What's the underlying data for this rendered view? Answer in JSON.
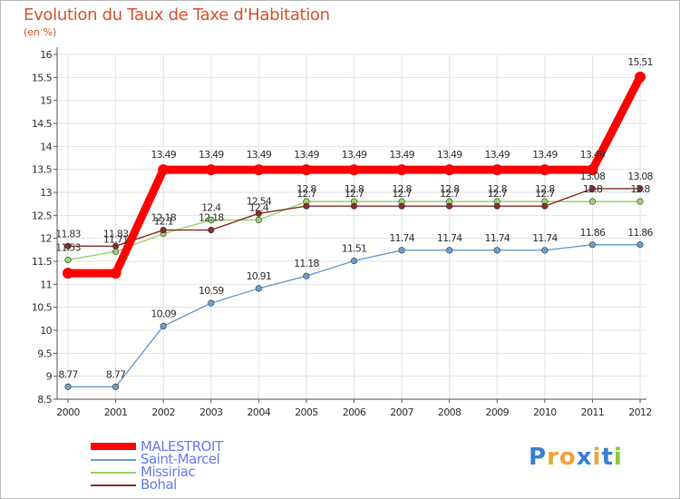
{
  "title": "Evolution du Taux de Taxe d'Habitation",
  "subtitle": "(en %)",
  "logo": {
    "letters": [
      "P",
      "r",
      "o",
      "x",
      "i",
      "t",
      "i"
    ],
    "colors": [
      "#3a7fd5",
      "#f0a23b",
      "#f0a23b",
      "#3a7fd5",
      "#f0a23b",
      "#3a7fd5",
      "#8cc63e"
    ]
  },
  "chart_data": {
    "type": "line",
    "x": [
      "2000",
      "2001",
      "2002",
      "2003",
      "2004",
      "2005",
      "2006",
      "2007",
      "2008",
      "2009",
      "2010",
      "2011",
      "2012"
    ],
    "ylim": [
      8.5,
      16
    ],
    "yticks": [
      "8.5",
      "9",
      "9.5",
      "10",
      "10.5",
      "11",
      "11.5",
      "12",
      "12.5",
      "13",
      "13.5",
      "14",
      "14.5",
      "15",
      "15.5",
      "16"
    ],
    "grid": true,
    "legend_position": "bottom-left",
    "series": [
      {
        "name": "MALESTROIT",
        "color": "#ff0000",
        "values": [
          11.24,
          11.24,
          13.49,
          13.49,
          13.49,
          13.49,
          13.49,
          13.49,
          13.49,
          13.49,
          13.49,
          13.49,
          15.51
        ],
        "labels": [
          "",
          "",
          "13.49",
          "13.49",
          "13.49",
          "13.49",
          "13.49",
          "13.49",
          "13.49",
          "13.49",
          "13.49",
          "13.49",
          "15.51"
        ]
      },
      {
        "name": "Saint-Marcel",
        "color": "#6a9fcc",
        "values": [
          8.77,
          8.77,
          10.09,
          10.59,
          10.91,
          11.18,
          11.51,
          11.74,
          11.74,
          11.74,
          11.74,
          11.86,
          11.86
        ],
        "labels": [
          "8.77",
          "8.77",
          "10.09",
          "10.59",
          "10.91",
          "11.18",
          "11.51",
          "11.74",
          "11.74",
          "11.74",
          "11.74",
          "11.86",
          "11.86"
        ]
      },
      {
        "name": "Missiriac",
        "color": "#99d36b",
        "values": [
          11.53,
          11.71,
          12.1,
          12.4,
          12.4,
          12.8,
          12.8,
          12.8,
          12.8,
          12.8,
          12.8,
          12.8,
          12.8
        ],
        "labels": [
          "11.53",
          "11.71",
          "12.1",
          "12.4",
          "12.4",
          "12.8",
          "12.8",
          "12.8",
          "12.8",
          "12.8",
          "12.8",
          "12.8",
          "12.8"
        ]
      },
      {
        "name": "Bohal",
        "color": "#8b2d2d",
        "values": [
          11.83,
          11.83,
          12.18,
          12.18,
          12.54,
          12.7,
          12.7,
          12.7,
          12.7,
          12.7,
          12.7,
          13.08,
          13.08
        ],
        "labels": [
          "11.83",
          "11.83",
          "12.18",
          "12.18",
          "12.54",
          "12.7",
          "12.7",
          "12.7",
          "12.7",
          "12.7",
          "12.7",
          "13.08",
          "13.08"
        ]
      }
    ]
  }
}
